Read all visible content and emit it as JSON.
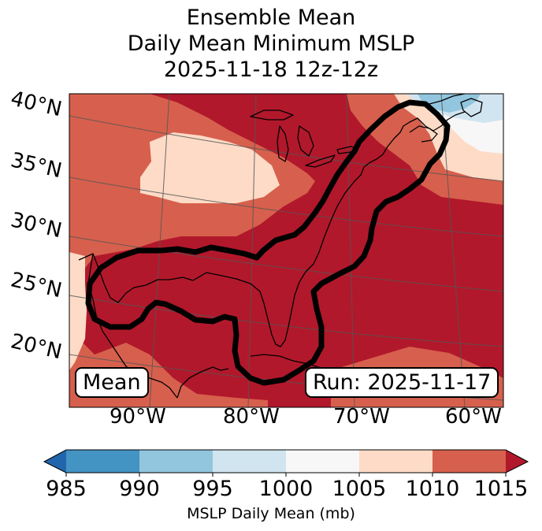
{
  "title": {
    "line1": "Ensemble Mean",
    "line2": "Daily Mean Minimum MSLP",
    "line3": "2025-11-18 12z-12z"
  },
  "lat_labels": [
    "40°N",
    "35°N",
    "30°N",
    "25°N",
    "20°N"
  ],
  "lon_labels": [
    "90°W",
    "80°W",
    "70°W",
    "60°W"
  ],
  "legend": {
    "mean_label": "Mean",
    "run_label": "Run: 2025-11-17"
  },
  "colorbar": {
    "ticks": [
      "985",
      "990",
      "995",
      "1000",
      "1005",
      "1010",
      "1015"
    ],
    "label": "MSLP Daily Mean (mb)",
    "colors": [
      "#2166ac",
      "#4393c3",
      "#92c5de",
      "#d1e5f0",
      "#f7f7f7",
      "#fddbc7",
      "#d6604d",
      "#b2182b"
    ]
  },
  "map_colors": {
    "dark_red": "#b2182b",
    "red": "#d6604d",
    "peach": "#fddbc7",
    "white": "#f7f7f7",
    "light_blue": "#d1e5f0",
    "blue": "#92c5de"
  }
}
